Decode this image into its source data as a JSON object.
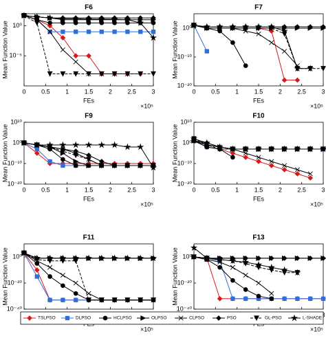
{
  "legend": {
    "entries": [
      {
        "name": "TSLPSO",
        "color": "#d7191c",
        "marker": "diamond",
        "dashed": false
      },
      {
        "name": "DLPSO",
        "color": "#2f6fdb",
        "marker": "square",
        "dashed": false
      },
      {
        "name": "HCLPSO",
        "color": "#000000",
        "marker": "circle",
        "dashed": false
      },
      {
        "name": "OLPSO",
        "color": "#000000",
        "marker": "triangle-right",
        "dashed": false
      },
      {
        "name": "CLPSO",
        "color": "#000000",
        "marker": "x",
        "dashed": false
      },
      {
        "name": "PSO",
        "color": "#000000",
        "marker": "diamond",
        "dashed": false
      },
      {
        "name": "GL-PSO",
        "color": "#000000",
        "marker": "triangle-down",
        "dashed": true
      },
      {
        "name": "L-SHADE",
        "color": "#000000",
        "marker": "star",
        "dashed": false
      }
    ]
  },
  "chart_data": [
    {
      "type": "line",
      "title": "F6",
      "xlabel": "FEs",
      "ylabel": "Mean Function Value",
      "x_multiplier": "×10⁵",
      "log_y": true,
      "x": [
        0,
        0.3,
        0.6,
        0.9,
        1.2,
        1.5,
        1.8,
        2.1,
        2.4,
        2.7,
        3
      ],
      "xlim": [
        0,
        3
      ],
      "xticks": [
        0,
        0.5,
        1,
        1.5,
        2,
        2.5,
        3
      ],
      "ylim": [
        1e-10,
        100.0
      ],
      "yticks": [
        {
          "value": 1e-05,
          "label": "10⁻⁵"
        },
        {
          "value": 1,
          "label": "10⁰"
        }
      ],
      "series": [
        {
          "values": [
            50,
            10,
            1,
            0.01,
            1e-05,
            1e-05,
            1e-08,
            1e-08,
            1e-08,
            1e-08,
            null
          ]
        },
        {
          "values": [
            50,
            10,
            0.1,
            0.1,
            0.1,
            0.1,
            0.1,
            0.1,
            0.1,
            0.1,
            0.1
          ]
        },
        {
          "values": [
            50,
            10,
            3,
            3,
            3,
            3,
            3,
            3,
            3,
            3,
            3
          ]
        },
        {
          "values": [
            50,
            30,
            20,
            10,
            10,
            10,
            10,
            10,
            10,
            10,
            10
          ]
        },
        {
          "values": [
            50,
            10,
            0.1,
            0.0001,
            1e-06,
            1e-08,
            1e-08,
            1e-08,
            1e-08,
            null,
            null
          ]
        },
        {
          "values": [
            50,
            30,
            20,
            20,
            20,
            20,
            20,
            20,
            20,
            20,
            20
          ]
        },
        {
          "values": [
            50,
            3,
            1e-08,
            1e-08,
            1e-08,
            1e-08,
            1e-08,
            1e-08,
            1e-08,
            1e-08,
            1e-08
          ]
        },
        {
          "values": [
            50,
            30,
            20,
            15,
            15,
            12,
            12,
            12,
            10,
            3,
            0.01
          ]
        }
      ]
    },
    {
      "type": "line",
      "title": "F7",
      "xlabel": "FEs",
      "ylabel": "Mean Function Value",
      "x_multiplier": "×10⁵",
      "log_y": true,
      "x": [
        0,
        0.3,
        0.6,
        0.9,
        1.2,
        1.5,
        1.8,
        2.1,
        2.4,
        2.7,
        3
      ],
      "xlim": [
        0,
        3
      ],
      "xticks": [
        0,
        0.5,
        1,
        1.5,
        2,
        2.5,
        3
      ],
      "ylim": [
        1e-20,
        100000.0
      ],
      "yticks": [
        {
          "value": 1e-20,
          "label": "10⁻²⁰"
        },
        {
          "value": 1e-10,
          "label": "10⁻¹⁰"
        },
        {
          "value": 1,
          "label": "10⁰"
        }
      ],
      "series": [
        {
          "values": [
            10,
            1,
            1,
            1,
            1,
            1,
            0.1,
            1e-18,
            1e-18,
            null,
            null
          ]
        },
        {
          "values": [
            10,
            1e-08,
            null,
            null,
            null,
            null,
            null,
            null,
            null,
            null,
            null
          ]
        },
        {
          "values": [
            10,
            1,
            0.1,
            1e-05,
            1e-13,
            null,
            null,
            null,
            null,
            null,
            null
          ]
        },
        {
          "values": [
            10,
            1,
            1,
            1,
            1,
            1,
            1,
            1,
            1,
            1,
            1
          ]
        },
        {
          "values": [
            10,
            1,
            1,
            1,
            0.1,
            0.01,
            1e-05,
            1e-08,
            1e-13,
            null,
            null
          ]
        },
        {
          "values": [
            10,
            3,
            3,
            3,
            3,
            3,
            3,
            3,
            3,
            3,
            3
          ]
        },
        {
          "values": [
            10,
            1,
            1,
            1,
            1,
            1,
            1,
            0.01,
            1e-14,
            1e-14,
            1e-14
          ]
        },
        {
          "values": [
            10,
            3,
            3,
            3,
            3,
            3,
            3,
            0.1,
            1e-14,
            1e-14,
            null
          ]
        }
      ]
    },
    {
      "type": "line",
      "title": "F9",
      "xlabel": "FEs",
      "ylabel": "Mean Function Value",
      "x_multiplier": "×10⁵",
      "log_y": true,
      "x": [
        0,
        0.3,
        0.6,
        0.9,
        1.2,
        1.5,
        1.8,
        2.1,
        2.4,
        2.7,
        3
      ],
      "xlim": [
        0,
        3
      ],
      "xticks": [
        0,
        0.5,
        1,
        1.5,
        2,
        2.5,
        3
      ],
      "ylim": [
        1e-20,
        10000000000.0
      ],
      "yticks": [
        {
          "value": 1e-20,
          "label": "10⁻²⁰"
        },
        {
          "value": 1e-10,
          "label": "10⁻¹⁰"
        },
        {
          "value": 1,
          "label": "10⁰"
        },
        {
          "value": 10000000000.0,
          "label": "10¹⁰"
        }
      ],
      "series": [
        {
          "values": [
            1,
            1e-05,
            1e-10,
            1e-10,
            1e-10,
            1e-10,
            1e-10,
            1e-10,
            1e-10,
            1e-10,
            1e-10
          ]
        },
        {
          "values": [
            1,
            0.001,
            1e-09,
            1e-11,
            1e-11,
            1e-11,
            1e-11,
            1e-11,
            1e-11,
            1e-11,
            1e-11
          ]
        },
        {
          "values": [
            1,
            0.1,
            0.001,
            1e-08,
            1e-11,
            1e-11,
            1e-11,
            1e-11,
            1e-11,
            1e-11,
            1e-11
          ]
        },
        {
          "values": [
            1,
            0.1,
            0.01,
            1e-05,
            1e-09,
            1e-11,
            1e-11,
            1e-11,
            1e-11,
            1e-11,
            1e-11
          ]
        },
        {
          "values": [
            1,
            0.1,
            0.01,
            0.001,
            1e-05,
            1e-08,
            1e-11,
            1e-11,
            1e-11,
            1e-11,
            1e-11
          ]
        },
        {
          "values": [
            1,
            0.1,
            0.01,
            0.001,
            0.0001,
            1e-06,
            1e-09,
            1e-11,
            1e-11,
            1e-11,
            1e-11
          ]
        },
        {
          "values": [
            1,
            0.1,
            0.01,
            0.0001,
            1e-06,
            1e-08,
            1e-11,
            1e-11,
            1e-11,
            1e-11,
            1e-11
          ]
        },
        {
          "values": [
            1,
            0.1,
            0.1,
            0.1,
            0.1,
            0.1,
            0.1,
            0.1,
            0.01,
            0.01,
            1e-12
          ]
        }
      ]
    },
    {
      "type": "line",
      "title": "F10",
      "xlabel": "FEs",
      "ylabel": "Mean Function Value",
      "x_multiplier": "×10⁵",
      "log_y": true,
      "x": [
        0,
        0.3,
        0.6,
        0.9,
        1.2,
        1.5,
        1.8,
        2.1,
        2.4,
        2.7,
        3
      ],
      "xlim": [
        0,
        3
      ],
      "xticks": [
        0,
        0.5,
        1,
        1.5,
        2,
        2.5,
        3
      ],
      "ylim": [
        1e-20,
        10000000000.0
      ],
      "yticks": [
        {
          "value": 1e-20,
          "label": "10⁻²⁰"
        },
        {
          "value": 1e-10,
          "label": "10⁻¹⁰"
        },
        {
          "value": 1,
          "label": "10⁰"
        },
        {
          "value": 10000000000.0,
          "label": "10¹⁰"
        }
      ],
      "series": [
        {
          "values": [
            10,
            0.01,
            0.001,
            1e-05,
            1e-07,
            1e-09,
            1e-11,
            1e-13,
            1e-15,
            1e-17,
            null
          ]
        },
        {
          "values": [
            10,
            0.01,
            0.001,
            0.001,
            0.001,
            0.001,
            0.001,
            0.001,
            0.001,
            0.001,
            0.001
          ]
        },
        {
          "values": [
            10,
            0.01,
            0.001,
            1e-07,
            null,
            null,
            null,
            null,
            null,
            null,
            null
          ]
        },
        {
          "values": [
            10,
            0.1,
            0.01,
            0.001,
            0.001,
            0.001,
            0.001,
            0.001,
            0.001,
            0.001,
            0.001
          ]
        },
        {
          "values": [
            10,
            0.1,
            0.01,
            0.001,
            1e-05,
            1e-07,
            1e-09,
            1e-11,
            1e-13,
            1e-15,
            null
          ]
        },
        {
          "values": [
            10,
            1,
            0.01,
            0.001,
            0.001,
            0.001,
            0.001,
            0.001,
            0.001,
            0.001,
            0.001
          ]
        },
        {
          "values": [
            100,
            0.1,
            0.001,
            0.001,
            0.001,
            0.001,
            0.001,
            0.001,
            0.001,
            0.001,
            0.001
          ]
        },
        {
          "values": [
            100,
            1,
            0.01,
            0.001,
            0.001,
            0.001,
            0.001,
            0.001,
            0.001,
            0.001,
            0.001
          ]
        }
      ]
    },
    {
      "type": "line",
      "title": "F11",
      "xlabel": "FEs",
      "ylabel": "Mean Function Value",
      "x_multiplier": "×10⁵",
      "log_y": true,
      "x": [
        0,
        0.3,
        0.6,
        0.9,
        1.2,
        1.5,
        1.8,
        2.1,
        2.4,
        2.7,
        3
      ],
      "xlim": [
        0,
        3
      ],
      "xticks": [
        0,
        0.5,
        1,
        1.5,
        2,
        2.5,
        3
      ],
      "ylim": [
        1e-40,
        10000000000.0
      ],
      "yticks": [
        {
          "value": 1e-40,
          "label": "10⁻⁴⁰"
        },
        {
          "value": 1e-20,
          "label": "10⁻²⁰"
        },
        {
          "value": 1,
          "label": "10⁰"
        }
      ],
      "series": [
        {
          "values": [
            1000,
            1e-10,
            1e-33,
            1e-33,
            1e-33,
            1e-33,
            1e-33,
            1e-33,
            1e-33,
            1e-33,
            1e-33
          ]
        },
        {
          "values": [
            1000,
            1e-15,
            1e-33,
            1e-33,
            1e-33,
            1e-33,
            1e-33,
            1e-33,
            1e-33,
            1e-33,
            1e-33
          ]
        },
        {
          "values": [
            1000,
            1e-05,
            1e-15,
            1e-22,
            1e-28,
            1e-33,
            1e-33,
            1e-33,
            1e-33,
            1e-33,
            1e-33
          ]
        },
        {
          "values": [
            1000,
            0.1,
            0.1,
            0.1,
            0.1,
            0.1,
            0.1,
            0.1,
            0.1,
            0.1,
            0.1
          ]
        },
        {
          "values": [
            1000,
            0.001,
            1e-08,
            1e-14,
            1e-20,
            1e-28,
            1e-33,
            1e-33,
            1e-33,
            1e-33,
            1e-33
          ]
        },
        {
          "values": [
            1000,
            0.1,
            0.1,
            0.1,
            0.1,
            0.1,
            0.1,
            0.1,
            0.1,
            0.1,
            0.1
          ]
        },
        {
          "values": [
            1000,
            0.01,
            0.001,
            0.001,
            0.001,
            1e-33,
            1e-33,
            1e-33,
            1e-33,
            1e-33,
            1e-33
          ]
        },
        {
          "values": [
            1000,
            0.1,
            0.1,
            0.1,
            0.1,
            0.1,
            0.1,
            0.1,
            0.1,
            0.1,
            0.1
          ]
        }
      ]
    },
    {
      "type": "line",
      "title": "F13",
      "xlabel": "FEs",
      "ylabel": "Mean Function Value",
      "x_multiplier": "×10⁵",
      "log_y": true,
      "x": [
        0,
        0.3,
        0.6,
        0.9,
        1.2,
        1.5,
        1.8,
        2.1,
        2.4,
        2.7,
        3
      ],
      "xlim": [
        0,
        3
      ],
      "xticks": [
        0,
        0.5,
        1,
        1.5,
        2,
        2.5,
        3
      ],
      "ylim": [
        1e-40,
        10000000000.0
      ],
      "yticks": [
        {
          "value": 1e-40,
          "label": "10⁻⁴⁰"
        },
        {
          "value": 1e-20,
          "label": "10⁻²⁰"
        },
        {
          "value": 1,
          "label": "10⁰"
        }
      ],
      "series": [
        {
          "values": [
            1,
            0.1,
            1e-32,
            1e-32,
            1e-32,
            1e-32,
            1e-32,
            1e-32,
            1e-32,
            1e-32,
            1e-32
          ]
        },
        {
          "values": [
            1,
            0.1,
            0.001,
            1e-32,
            1e-32,
            1e-32,
            1e-32,
            1e-32,
            1e-32,
            1e-32,
            1e-32
          ]
        },
        {
          "values": [
            1,
            0.01,
            1e-08,
            1e-18,
            1e-25,
            1e-30,
            1e-32,
            null,
            null,
            null,
            null
          ]
        },
        {
          "values": [
            1,
            0.1,
            0.1,
            0.1,
            0.1,
            0.1,
            0.1,
            0.1,
            0.1,
            0.1,
            0.1
          ]
        },
        {
          "values": [
            1,
            0.01,
            0.0001,
            1e-08,
            1e-14,
            1e-20,
            1e-28,
            null,
            null,
            null,
            null
          ]
        },
        {
          "values": [
            1,
            0.1,
            0.1,
            0.1,
            0.1,
            0.1,
            0.1,
            0.1,
            0.1,
            0.1,
            0.1
          ]
        },
        {
          "values": [
            1,
            0.1,
            0.01,
            0.001,
            1e-05,
            1e-08,
            1e-10,
            1e-12,
            1e-12,
            null,
            null
          ]
        },
        {
          "values": [
            10000000.0,
            0.1,
            0.01,
            0.001,
            0.0001,
            1e-06,
            1e-08,
            1e-10,
            1e-12,
            null,
            null
          ]
        }
      ]
    }
  ]
}
